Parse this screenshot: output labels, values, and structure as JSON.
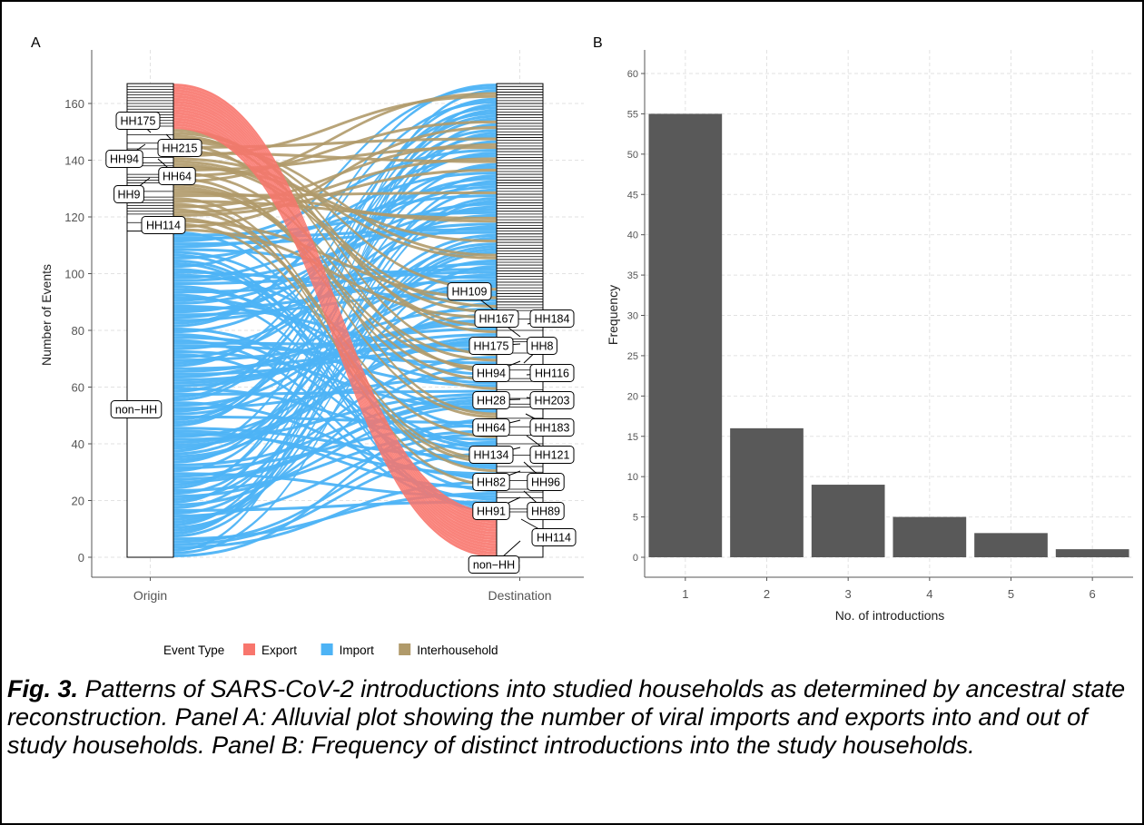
{
  "panel_labels": {
    "a": "A",
    "b": "B"
  },
  "caption": {
    "label": "Fig. 3.",
    "text": " Patterns of SARS-CoV-2 introductions into studied households as determined by ancestral state reconstruction. Panel A: Alluvial plot showing the number of viral imports and exports into and out of study households. Panel B: Frequency of distinct introductions into the study households."
  },
  "chart_data": [
    {
      "type": "alluvial",
      "panel": "A",
      "ylabel": "Number of Events",
      "ylim": [
        0,
        167
      ],
      "yticks": [
        0,
        20,
        40,
        60,
        80,
        100,
        120,
        140,
        160
      ],
      "axes": [
        "Origin",
        "Destination"
      ],
      "grid": true,
      "legend": {
        "title": "Event Type",
        "position": "bottom",
        "items": [
          {
            "name": "Export",
            "color": "#F8766D"
          },
          {
            "name": "Import",
            "color": "#4DB3F5"
          },
          {
            "name": "Interhousehold",
            "color": "#B09A6A"
          }
        ]
      },
      "totals": {
        "Export": 16,
        "Import": 115,
        "Interhousehold": 36,
        "All": 167
      },
      "origin_labels": [
        "HH175",
        "HH215",
        "HH94",
        "HH64",
        "HH9",
        "HH114",
        "non−HH"
      ],
      "destination_labels_left": [
        "HH109",
        "HH167",
        "HH175",
        "HH94",
        "HH28",
        "HH64",
        "HH134",
        "HH82",
        "HH91",
        "non−HH"
      ],
      "destination_labels_right": [
        "HH184",
        "HH8",
        "HH116",
        "HH203",
        "HH183",
        "HH121",
        "HH96",
        "HH89",
        "HH114"
      ],
      "origin_label_values": {
        "HH175": 155,
        "HH215": 145,
        "HH94": 141,
        "HH64": 135,
        "HH9": 128,
        "HH114": 117,
        "non−HH": 52
      },
      "destination_label_values": {
        "HH109": 84,
        "HH167": 80,
        "HH175": 75,
        "HH94": 71,
        "HH28": 67,
        "HH64": 63,
        "HH134": 58,
        "HH82": 54,
        "HH91": 49,
        "non−HH": 8,
        "HH184": 80,
        "HH8": 75,
        "HH116": 71,
        "HH203": 67,
        "HH183": 63,
        "HH121": 58,
        "HH96": 54,
        "HH89": 49,
        "HH114": 42
      }
    },
    {
      "type": "bar",
      "panel": "B",
      "categories": [
        "1",
        "2",
        "3",
        "4",
        "5",
        "6"
      ],
      "values": [
        55,
        16,
        9,
        5,
        3,
        1
      ],
      "xlabel": "No. of introductions",
      "ylabel": "Frequency",
      "ylim": [
        -1.5,
        62
      ],
      "yticks": [
        0,
        5,
        10,
        15,
        20,
        25,
        30,
        35,
        40,
        45,
        50,
        55,
        60
      ],
      "bar_color": "#595959",
      "grid": true
    }
  ]
}
